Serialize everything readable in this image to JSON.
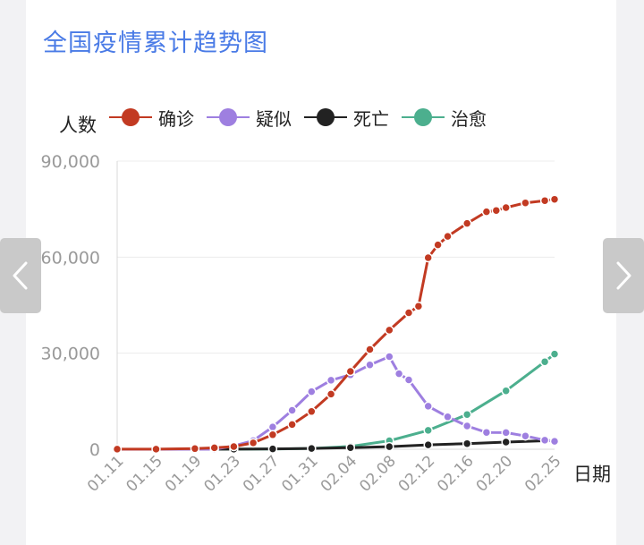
{
  "title": "全国疫情累计趋势图",
  "nav": {
    "prev_icon": "chevron-left-icon",
    "next_icon": "chevron-right-icon"
  },
  "chart_data": {
    "type": "line",
    "ylabel": "人数",
    "xlabel": "日期",
    "ylim": [
      0,
      90000
    ],
    "yticks": [
      0,
      30000,
      60000,
      90000
    ],
    "ytick_labels": [
      "0",
      "30,000",
      "60,000",
      "90,000"
    ],
    "xticks": [
      "01.11",
      "01.15",
      "01.19",
      "01.23",
      "01.27",
      "01.31",
      "02.04",
      "02.08",
      "02.12",
      "02.16",
      "02.20",
      "02.25"
    ],
    "grid": true,
    "legend_position": "top",
    "series": [
      {
        "name": "确诊",
        "color": "#c23a22",
        "points": [
          [
            "01.11",
            41
          ],
          [
            "01.15",
            41
          ],
          [
            "01.19",
            198
          ],
          [
            "01.21",
            440
          ],
          [
            "01.23",
            830
          ],
          [
            "01.25",
            1975
          ],
          [
            "01.27",
            4515
          ],
          [
            "01.29",
            7711
          ],
          [
            "01.31",
            11791
          ],
          [
            "02.02",
            17205
          ],
          [
            "02.04",
            24324
          ],
          [
            "02.06",
            31161
          ],
          [
            "02.08",
            37198
          ],
          [
            "02.10",
            42638
          ],
          [
            "02.11",
            44653
          ],
          [
            "02.12",
            59804
          ],
          [
            "02.13",
            63851
          ],
          [
            "02.14",
            66492
          ],
          [
            "02.16",
            70548
          ],
          [
            "02.18",
            74185
          ],
          [
            "02.19",
            74576
          ],
          [
            "02.20",
            75465
          ],
          [
            "02.22",
            76936
          ],
          [
            "02.24",
            77658
          ],
          [
            "02.25",
            78064
          ]
        ]
      },
      {
        "name": "疑似",
        "color": "#9e7fe0",
        "points": [
          [
            "01.11",
            0
          ],
          [
            "01.15",
            0
          ],
          [
            "01.19",
            0
          ],
          [
            "01.21",
            0
          ],
          [
            "01.23",
            1072
          ],
          [
            "01.25",
            2684
          ],
          [
            "01.27",
            6973
          ],
          [
            "01.29",
            12167
          ],
          [
            "01.31",
            17988
          ],
          [
            "02.02",
            21558
          ],
          [
            "02.04",
            23260
          ],
          [
            "02.06",
            26359
          ],
          [
            "02.08",
            28942
          ],
          [
            "02.09",
            23589
          ],
          [
            "02.10",
            21675
          ],
          [
            "02.12",
            13435
          ],
          [
            "02.14",
            10109
          ],
          [
            "02.16",
            7264
          ],
          [
            "02.18",
            5248
          ],
          [
            "02.20",
            5206
          ],
          [
            "02.22",
            4148
          ],
          [
            "02.24",
            2824
          ],
          [
            "02.25",
            2491
          ]
        ]
      },
      {
        "name": "死亡",
        "color": "#222222",
        "points": [
          [
            "01.11",
            1
          ],
          [
            "01.15",
            2
          ],
          [
            "01.19",
            3
          ],
          [
            "01.23",
            25
          ],
          [
            "01.27",
            106
          ],
          [
            "01.31",
            259
          ],
          [
            "02.04",
            490
          ],
          [
            "02.08",
            811
          ],
          [
            "02.12",
            1367
          ],
          [
            "02.16",
            1770
          ],
          [
            "02.20",
            2236
          ],
          [
            "02.24",
            2663
          ],
          [
            "02.25",
            2715
          ]
        ]
      },
      {
        "name": "治愈",
        "color": "#4caf8e",
        "points": [
          [
            "01.11",
            0
          ],
          [
            "01.15",
            12
          ],
          [
            "01.19",
            25
          ],
          [
            "01.23",
            34
          ],
          [
            "01.27",
            60
          ],
          [
            "01.31",
            243
          ],
          [
            "02.04",
            892
          ],
          [
            "02.08",
            2649
          ],
          [
            "02.12",
            5911
          ],
          [
            "02.16",
            10844
          ],
          [
            "02.20",
            18264
          ],
          [
            "02.24",
            27323
          ],
          [
            "02.25",
            29745
          ]
        ]
      }
    ]
  }
}
